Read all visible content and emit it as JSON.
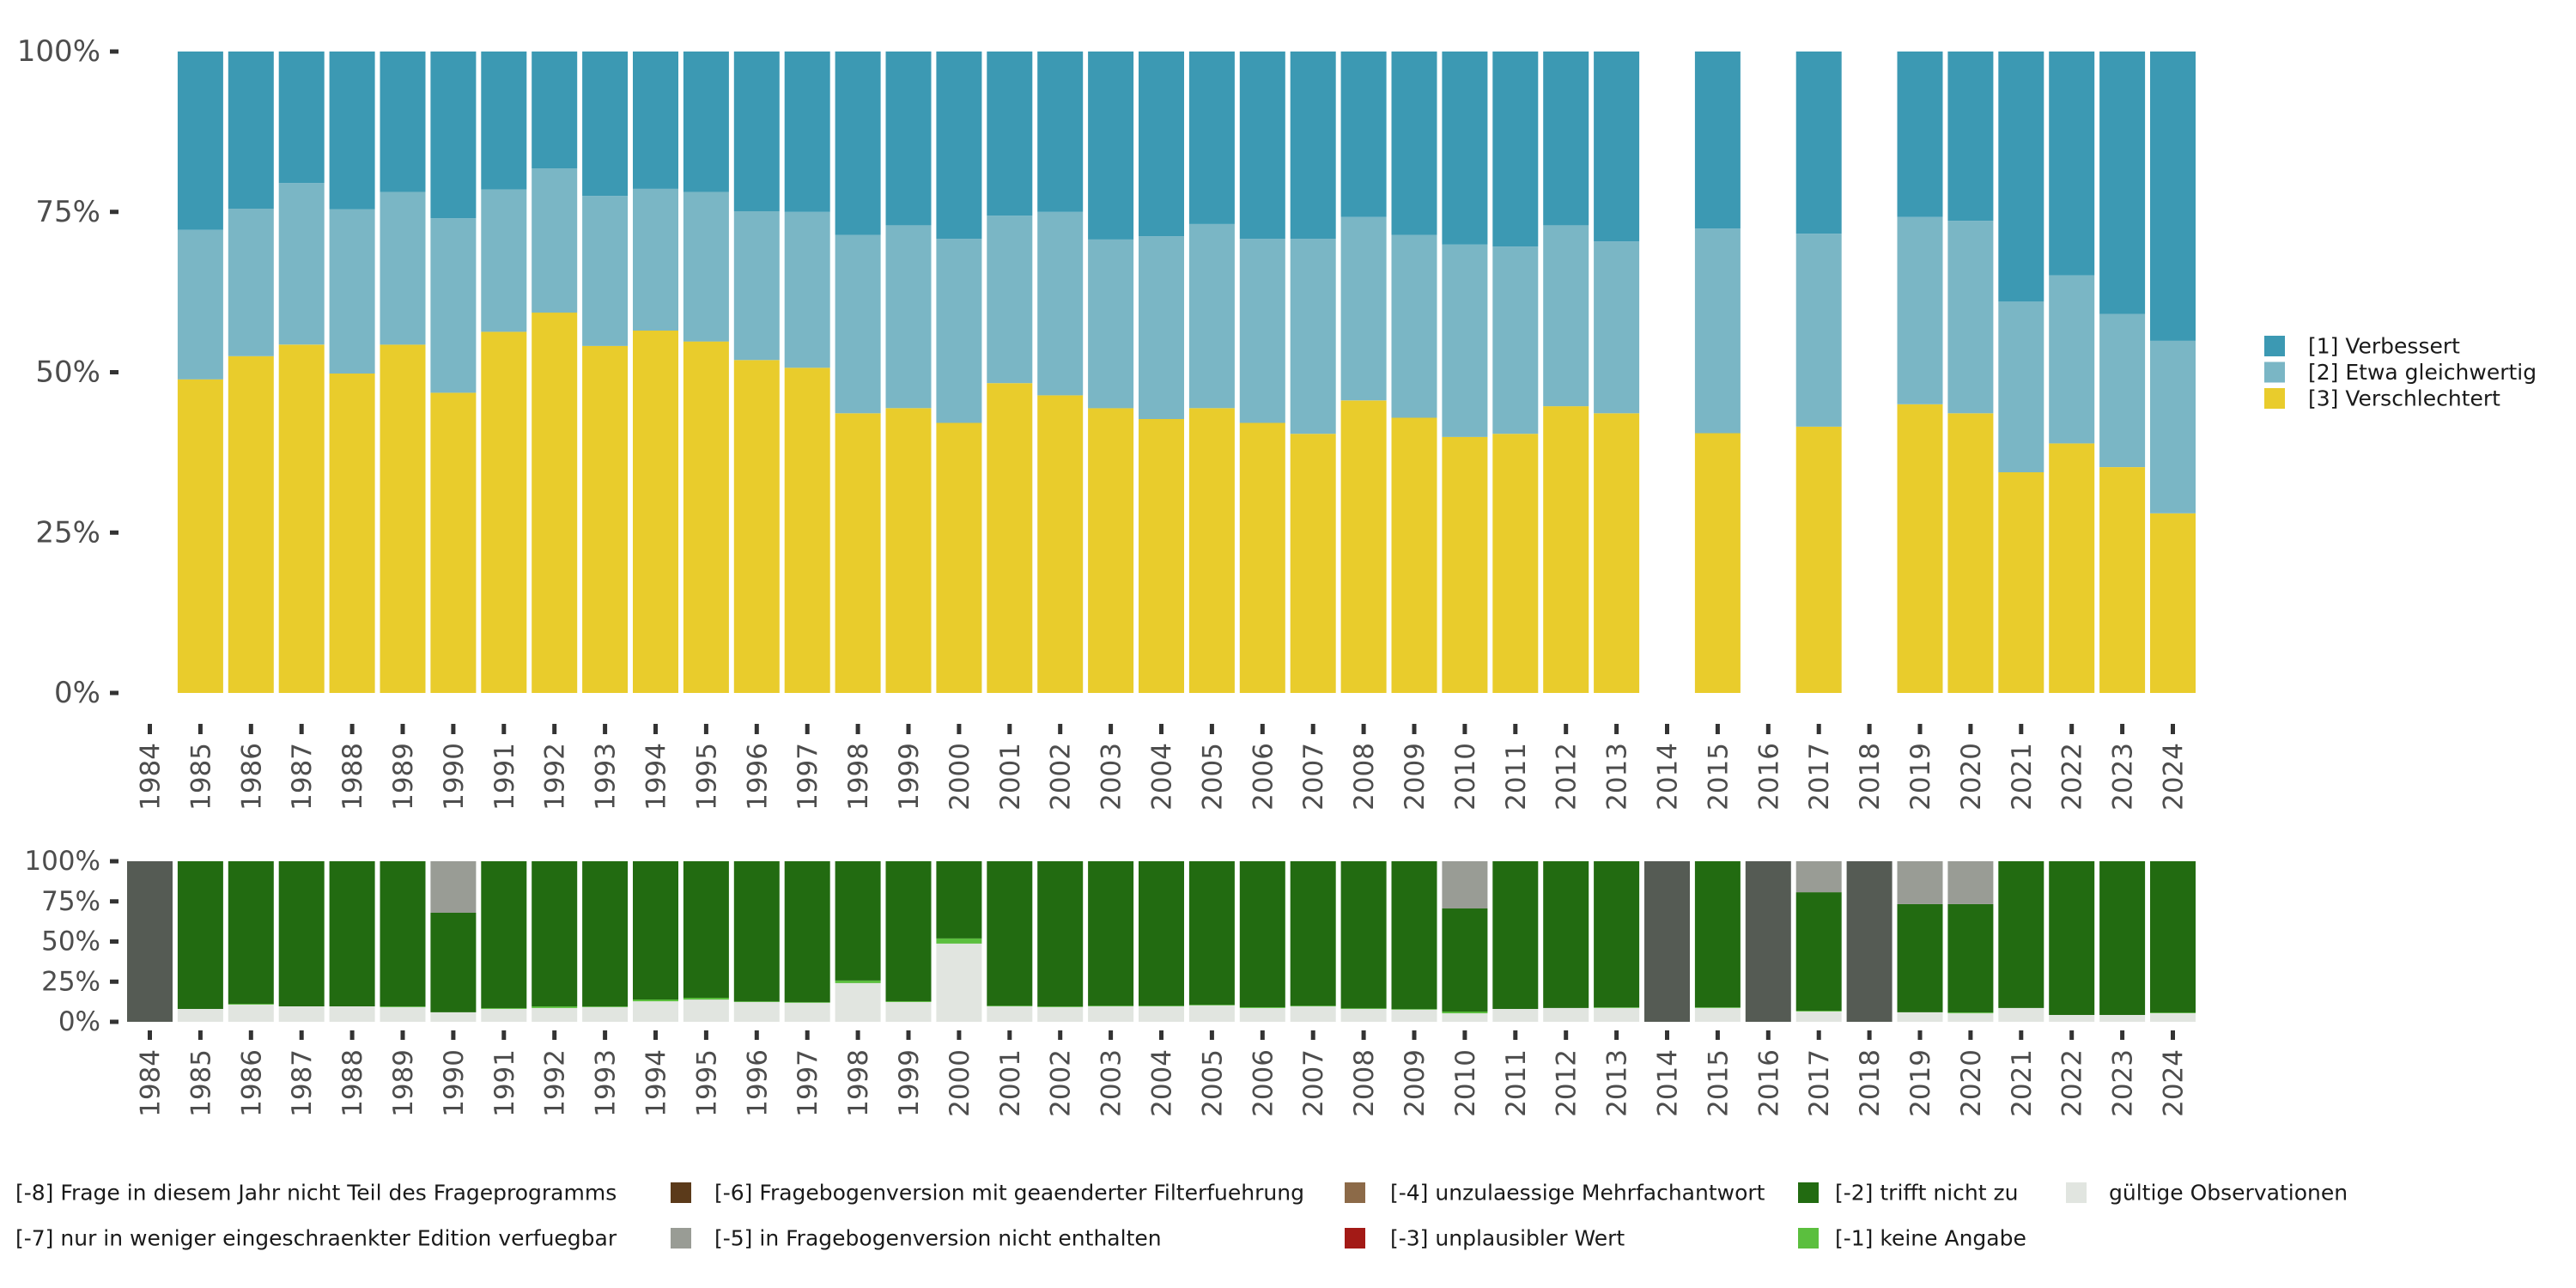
{
  "chart_data": [
    {
      "type": "bar",
      "stacked": true,
      "normalized": true,
      "title": "",
      "xlabel": "",
      "ylabel": "",
      "ylim": [
        0,
        100
      ],
      "y_ticks": [
        "0%",
        "25%",
        "50%",
        "75%",
        "100%"
      ],
      "y_tick_values": [
        0,
        25,
        50,
        75,
        100
      ],
      "categories": [
        "1984",
        "1985",
        "1986",
        "1987",
        "1988",
        "1989",
        "1990",
        "1991",
        "1992",
        "1993",
        "1994",
        "1995",
        "1996",
        "1997",
        "1998",
        "1999",
        "2000",
        "2001",
        "2002",
        "2003",
        "2004",
        "2005",
        "2006",
        "2007",
        "2008",
        "2009",
        "2010",
        "2011",
        "2012",
        "2013",
        "2014",
        "2015",
        "2016",
        "2017",
        "2018",
        "2019",
        "2020",
        "2021",
        "2022",
        "2023",
        "2024"
      ],
      "legend_position": "right",
      "series": [
        {
          "name": "[3] Verschlechtert",
          "color": "#e9cc2c",
          "values": [
            null,
            48.9,
            52.5,
            54.3,
            49.8,
            54.3,
            46.8,
            56.3,
            59.3,
            54.1,
            56.5,
            54.8,
            51.9,
            50.7,
            43.6,
            44.4,
            42.1,
            48.3,
            46.4,
            44.4,
            42.7,
            44.4,
            42.1,
            40.4,
            45.6,
            42.9,
            39.9,
            40.4,
            44.7,
            43.6,
            null,
            40.5,
            null,
            41.5,
            null,
            45.0,
            43.6,
            34.4,
            38.9,
            35.2,
            28.0
          ]
        },
        {
          "name": "[2] Etwa gleichwertig",
          "color": "#7ab6c5",
          "values": [
            null,
            23.3,
            23.0,
            25.2,
            25.6,
            23.8,
            27.2,
            22.2,
            22.5,
            23.4,
            22.1,
            23.3,
            23.2,
            24.3,
            27.8,
            28.5,
            28.7,
            26.1,
            28.6,
            26.3,
            28.5,
            28.7,
            28.7,
            30.4,
            28.6,
            28.5,
            30.0,
            29.2,
            28.2,
            26.8,
            null,
            31.9,
            null,
            30.1,
            null,
            29.2,
            30.0,
            26.6,
            26.2,
            23.9,
            26.9
          ]
        },
        {
          "name": "[1] Verbessert",
          "color": "#3c99b3",
          "values": [
            null,
            27.8,
            24.5,
            20.5,
            24.6,
            21.9,
            26.0,
            21.5,
            18.2,
            22.5,
            21.4,
            21.9,
            24.9,
            25.0,
            28.6,
            27.1,
            29.2,
            25.6,
            25.0,
            29.3,
            28.8,
            26.9,
            29.2,
            29.2,
            25.8,
            28.6,
            30.1,
            30.4,
            27.1,
            29.6,
            null,
            27.6,
            null,
            28.4,
            null,
            25.8,
            26.4,
            39.0,
            34.9,
            40.9,
            45.1
          ]
        }
      ]
    },
    {
      "type": "bar",
      "stacked": true,
      "normalized": true,
      "title": "",
      "xlabel": "",
      "ylabel": "",
      "ylim": [
        0,
        100
      ],
      "y_ticks": [
        "0%",
        "25%",
        "50%",
        "75%",
        "100%"
      ],
      "y_tick_values": [
        0,
        25,
        50,
        75,
        100
      ],
      "categories": [
        "1984",
        "1985",
        "1986",
        "1987",
        "1988",
        "1989",
        "1990",
        "1991",
        "1992",
        "1993",
        "1994",
        "1995",
        "1996",
        "1997",
        "1998",
        "1999",
        "2000",
        "2001",
        "2002",
        "2003",
        "2004",
        "2005",
        "2006",
        "2007",
        "2008",
        "2009",
        "2010",
        "2011",
        "2012",
        "2013",
        "2014",
        "2015",
        "2016",
        "2017",
        "2018",
        "2019",
        "2020",
        "2021",
        "2022",
        "2023",
        "2024"
      ],
      "legend_position": "bottom",
      "series": [
        {
          "name": "gültige Observationen",
          "color": "#e1e5e0",
          "values": [
            0,
            8.0,
            10.7,
            9.6,
            9.6,
            9.1,
            5.9,
            8.0,
            8.6,
            9.1,
            12.8,
            13.9,
            12.3,
            11.8,
            24.1,
            12.3,
            48.7,
            9.6,
            9.1,
            9.6,
            9.6,
            10.2,
            8.6,
            9.6,
            8.0,
            7.5,
            5.3,
            8.0,
            8.6,
            8.6,
            0,
            8.6,
            0,
            6.4,
            0,
            5.9,
            5.3,
            8.6,
            4.3,
            4.3,
            5.3
          ]
        },
        {
          "name": "[-1] keine Angabe",
          "color": "#5bbf3e",
          "values": [
            0,
            0,
            0.5,
            0,
            0,
            0.4,
            0,
            0.5,
            1.0,
            0.4,
            1.1,
            1.1,
            0.4,
            0.4,
            1.6,
            0.5,
            3.2,
            0.4,
            0.4,
            0.4,
            0.4,
            0.4,
            0.5,
            0.4,
            0.4,
            0.4,
            1.1,
            0,
            0,
            0.4,
            0,
            0.4,
            0,
            0.5,
            0,
            0,
            0.5,
            0,
            0,
            0,
            0.4
          ]
        },
        {
          "name": "[-2] trifft nicht zu",
          "color": "#226b11",
          "values": [
            0,
            92.0,
            88.8,
            90.4,
            90.4,
            90.5,
            62.0,
            91.5,
            90.4,
            90.5,
            86.1,
            85.0,
            87.3,
            87.8,
            74.3,
            87.2,
            48.1,
            90.0,
            90.5,
            90.0,
            90.0,
            89.4,
            90.9,
            90.0,
            91.6,
            92.1,
            64.2,
            92.0,
            91.4,
            91.0,
            0,
            91.0,
            0,
            73.8,
            0,
            67.4,
            67.5,
            91.4,
            95.7,
            95.7,
            94.3
          ]
        },
        {
          "name": "[-3] unplausibler Wert",
          "color": "#a31a16",
          "values": [
            0,
            0,
            0,
            0,
            0,
            0,
            0,
            0,
            0,
            0,
            0,
            0,
            0,
            0,
            0,
            0,
            0,
            0,
            0,
            0,
            0,
            0,
            0,
            0,
            0,
            0,
            0,
            0,
            0,
            0,
            0,
            0,
            0,
            0,
            0,
            0,
            0,
            0,
            0,
            0,
            0
          ]
        },
        {
          "name": "[-4] unzulaessige Mehrfachantwort",
          "color": "#8c6a48",
          "values": [
            0,
            0,
            0,
            0,
            0,
            0,
            0,
            0,
            0,
            0,
            0,
            0,
            0,
            0,
            0,
            0,
            0,
            0,
            0,
            0,
            0,
            0,
            0,
            0,
            0,
            0,
            0,
            0,
            0,
            0,
            0,
            0,
            0,
            0,
            0,
            0,
            0,
            0,
            0,
            0,
            0
          ]
        },
        {
          "name": "[-5] in Fragebogenversion nicht enthalten",
          "color": "#999c95",
          "values": [
            0,
            0,
            0,
            0,
            0,
            0,
            32.1,
            0,
            0,
            0,
            0,
            0,
            0,
            0,
            0,
            0,
            0,
            0,
            0,
            0,
            0,
            0,
            0,
            0,
            0,
            0,
            29.4,
            0,
            0,
            0,
            0,
            0,
            0,
            19.3,
            0,
            26.7,
            26.7,
            0,
            0,
            0,
            0
          ]
        },
        {
          "name": "[-6] Fragebogenversion mit geaenderter Filterfuehrung",
          "color": "#5b3a1a",
          "values": [
            0,
            0,
            0,
            0,
            0,
            0,
            0,
            0,
            0,
            0,
            0,
            0,
            0,
            0,
            0,
            0,
            0,
            0,
            0,
            0,
            0,
            0,
            0,
            0,
            0,
            0,
            0,
            0,
            0,
            0,
            0,
            0,
            0,
            0,
            0,
            0,
            0,
            0,
            0,
            0,
            0
          ]
        },
        {
          "name": "[-7] nur in weniger eingeschraenkter Edition verfuegbar",
          "color": "#c9c9c9",
          "values": [
            0,
            0,
            0,
            0,
            0,
            0,
            0,
            0,
            0,
            0,
            0,
            0,
            0,
            0,
            0,
            0,
            0,
            0,
            0,
            0,
            0,
            0,
            0,
            0,
            0,
            0,
            0,
            0,
            0,
            0,
            0,
            0,
            0,
            0,
            0,
            0,
            0,
            0,
            0,
            0,
            0
          ]
        },
        {
          "name": "[-8] Frage in diesem Jahr nicht Teil des Frageprogramms",
          "color": "#555b54",
          "values": [
            100,
            0,
            0,
            0,
            0,
            0,
            0,
            0,
            0,
            0,
            0,
            0,
            0,
            0,
            0,
            0,
            0,
            0,
            0,
            0,
            0,
            0,
            0,
            0,
            0,
            0,
            0,
            0,
            0,
            0,
            100,
            0,
            100,
            0,
            100,
            0,
            0,
            0,
            0,
            0,
            0
          ]
        }
      ]
    }
  ],
  "legend_top": [
    {
      "label": "[1] Verbessert",
      "color": "#3c99b3"
    },
    {
      "label": "[2] Etwa gleichwertig",
      "color": "#7ab6c5"
    },
    {
      "label": "[3] Verschlechtert",
      "color": "#e9cc2c"
    }
  ],
  "legend_bottom": [
    {
      "label": "[-8] Frage in diesem Jahr nicht Teil des Frageprogramms",
      "color": "#555b54",
      "row": 0,
      "col": 0
    },
    {
      "label": "[-7] nur in weniger eingeschraenkter Edition verfuegbar",
      "color": "#c9c9c9",
      "row": 1,
      "col": 0
    },
    {
      "label": "[-6] Fragebogenversion mit geaenderter Filterfuehrung",
      "color": "#5b3a1a",
      "row": 0,
      "col": 1
    },
    {
      "label": "[-5] in Fragebogenversion nicht enthalten",
      "color": "#999c95",
      "row": 1,
      "col": 1
    },
    {
      "label": "[-4] unzulaessige Mehrfachantwort",
      "color": "#8c6a48",
      "row": 0,
      "col": 2
    },
    {
      "label": "[-3] unplausibler Wert",
      "color": "#a31a16",
      "row": 1,
      "col": 2
    },
    {
      "label": "[-2] trifft nicht zu",
      "color": "#226b11",
      "row": 0,
      "col": 3
    },
    {
      "label": "[-1] keine Angabe",
      "color": "#5bbf3e",
      "row": 1,
      "col": 3
    },
    {
      "label": "gültige Observationen",
      "color": "#e1e5e0",
      "row": 0,
      "col": 4
    }
  ]
}
